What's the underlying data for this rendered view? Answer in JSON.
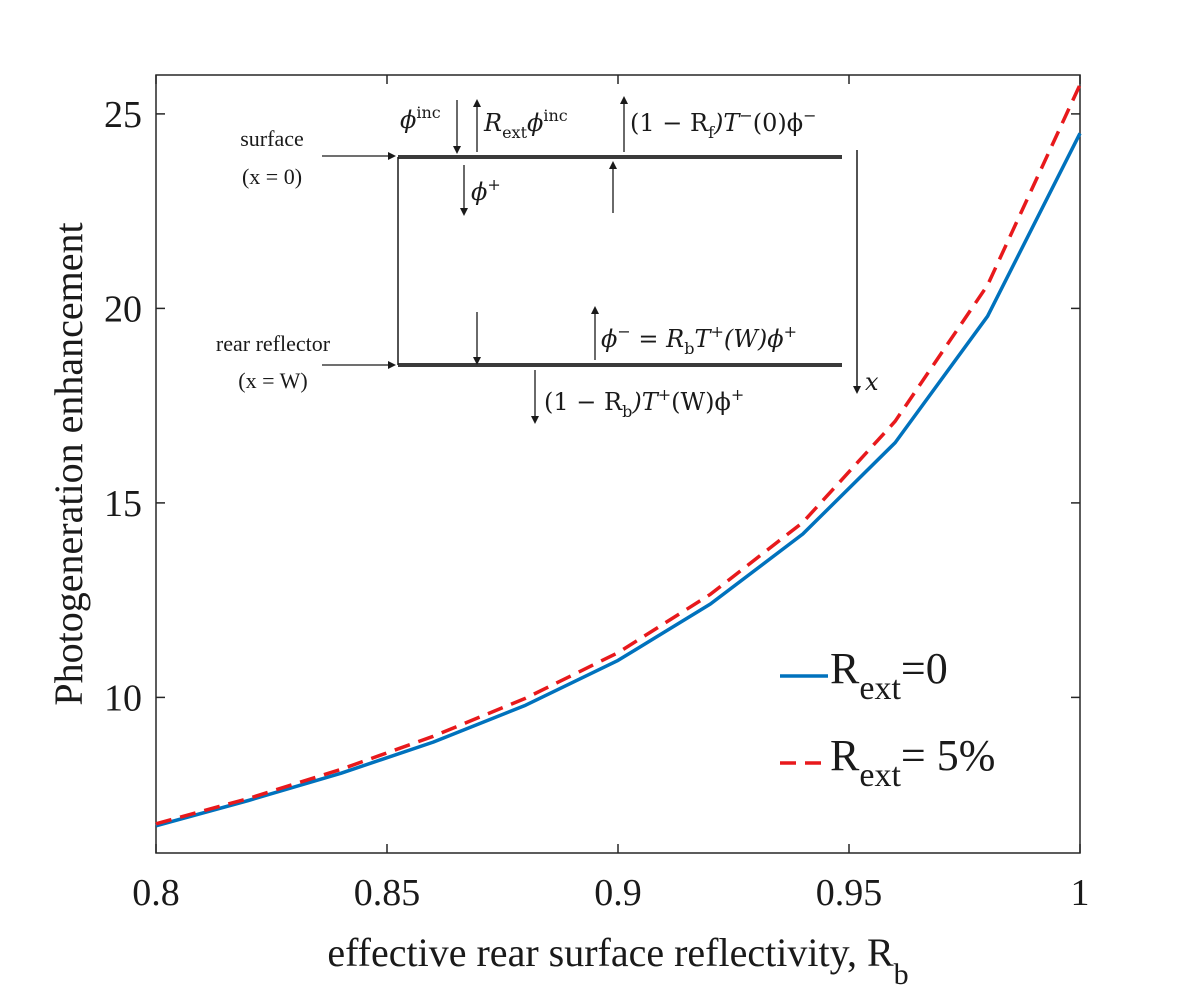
{
  "chart_data": {
    "type": "line",
    "title": "",
    "xlabel": "effective rear surface reflectivity, R",
    "xlabel_subscript": "b",
    "ylabel": "Photogeneration enhancement",
    "xlim": [
      0.8,
      1.0
    ],
    "ylim": [
      6.0,
      26.0
    ],
    "grid": false,
    "legend_position": "bottom-right",
    "x_ticks": [
      0.8,
      0.85,
      0.9,
      0.95,
      1.0
    ],
    "x_tick_labels": [
      "0.8",
      "0.85",
      "0.9",
      "0.95",
      "1"
    ],
    "y_ticks": [
      10,
      15,
      20,
      25
    ],
    "y_tick_labels": [
      "10",
      "15",
      "20",
      "25"
    ],
    "x": [
      0.8,
      0.82,
      0.84,
      0.86,
      0.88,
      0.9,
      0.92,
      0.94,
      0.96,
      0.98,
      1.0
    ],
    "series": [
      {
        "name_main": "R",
        "name_sub": "ext",
        "name_rest": "=0",
        "color": "#0072BD",
        "dash": "solid",
        "values": [
          6.7,
          7.35,
          8.05,
          8.85,
          9.8,
          10.95,
          12.4,
          14.2,
          16.55,
          19.8,
          24.5
        ]
      },
      {
        "name_main": "R",
        "name_sub": "ext",
        "name_rest": "= 5%",
        "color": "#E8191C",
        "dash": "dashed",
        "values": [
          6.75,
          7.4,
          8.15,
          9.0,
          9.98,
          11.15,
          12.65,
          14.5,
          17.1,
          20.6,
          25.75
        ]
      }
    ]
  },
  "inset": {
    "surface_label": "surface",
    "surface_pos": "(x = 0)",
    "rear_label": "rear reflector",
    "rear_pos": "(x = W)",
    "x_axis_var": "x",
    "phi_inc": "ϕ",
    "phi_inc_sup": "inc",
    "r_ext_phi": "R",
    "r_ext_sub": "ext",
    "r_ext_phi2": "ϕ",
    "r_ext_sup": "inc",
    "front_escape": "(1 − R",
    "front_escape_sub": "f",
    "front_escape_rest": ")T",
    "front_escape_sup": "−",
    "front_escape_rest2": "(0)ϕ",
    "front_escape_sup2": "−",
    "phi_plus": "ϕ",
    "phi_plus_sup": "+",
    "phi_minus": "ϕ",
    "phi_minus_sup": "−",
    "phi_minus_eq": " = R",
    "phi_minus_sub": "b",
    "phi_minus_T": "T",
    "phi_minus_Tsup": "+",
    "phi_minus_rest": "(W)ϕ",
    "phi_minus_sup2": "+",
    "rear_escape": "(1 − R",
    "rear_escape_sub": "b",
    "rear_escape_rest": ")T",
    "rear_escape_sup": "+",
    "rear_escape_rest2": "(W)ϕ",
    "rear_escape_sup2": "+"
  }
}
